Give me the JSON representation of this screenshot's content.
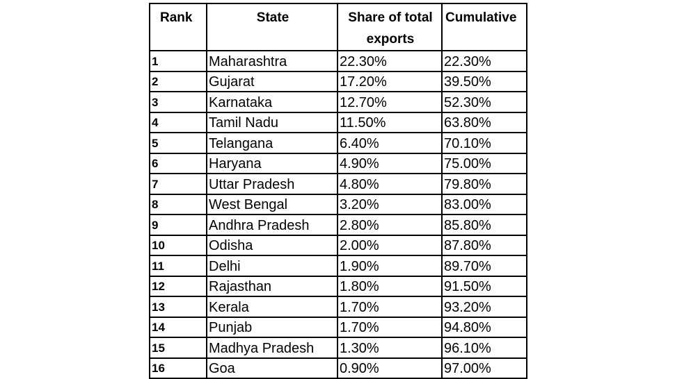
{
  "table": {
    "headers": {
      "rank": "Rank",
      "state": "State",
      "share": "Share of total exports",
      "cumulative": "Cumulative"
    },
    "rows": [
      {
        "rank": "1",
        "state": "Maharashtra",
        "share": "22.30%",
        "cumulative": "22.30%"
      },
      {
        "rank": "2",
        "state": "Gujarat",
        "share": "17.20%",
        "cumulative": "39.50%"
      },
      {
        "rank": "3",
        "state": "Karnataka",
        "share": "12.70%",
        "cumulative": "52.30%"
      },
      {
        "rank": "4",
        "state": "Tamil Nadu",
        "share": "11.50%",
        "cumulative": "63.80%"
      },
      {
        "rank": "5",
        "state": "Telangana",
        "share": "6.40%",
        "cumulative": "70.10%"
      },
      {
        "rank": "6",
        "state": "Haryana",
        "share": "4.90%",
        "cumulative": "75.00%"
      },
      {
        "rank": "7",
        "state": "Uttar Pradesh",
        "share": "4.80%",
        "cumulative": "79.80%"
      },
      {
        "rank": "8",
        "state": "West Bengal",
        "share": "3.20%",
        "cumulative": "83.00%"
      },
      {
        "rank": "9",
        "state": "Andhra Pradesh",
        "share": "2.80%",
        "cumulative": "85.80%"
      },
      {
        "rank": "10",
        "state": "Odisha",
        "share": "2.00%",
        "cumulative": "87.80%"
      },
      {
        "rank": "11",
        "state": "Delhi",
        "share": "1.90%",
        "cumulative": "89.70%"
      },
      {
        "rank": "12",
        "state": "Rajasthan",
        "share": "1.80%",
        "cumulative": "91.50%"
      },
      {
        "rank": "13",
        "state": "Kerala",
        "share": "1.70%",
        "cumulative": "93.20%"
      },
      {
        "rank": "14",
        "state": "Punjab",
        "share": "1.70%",
        "cumulative": "94.80%"
      },
      {
        "rank": "15",
        "state": "Madhya Pradesh",
        "share": "1.30%",
        "cumulative": "96.10%"
      },
      {
        "rank": "16",
        "state": "Goa",
        "share": "0.90%",
        "cumulative": "97.00%"
      }
    ]
  }
}
